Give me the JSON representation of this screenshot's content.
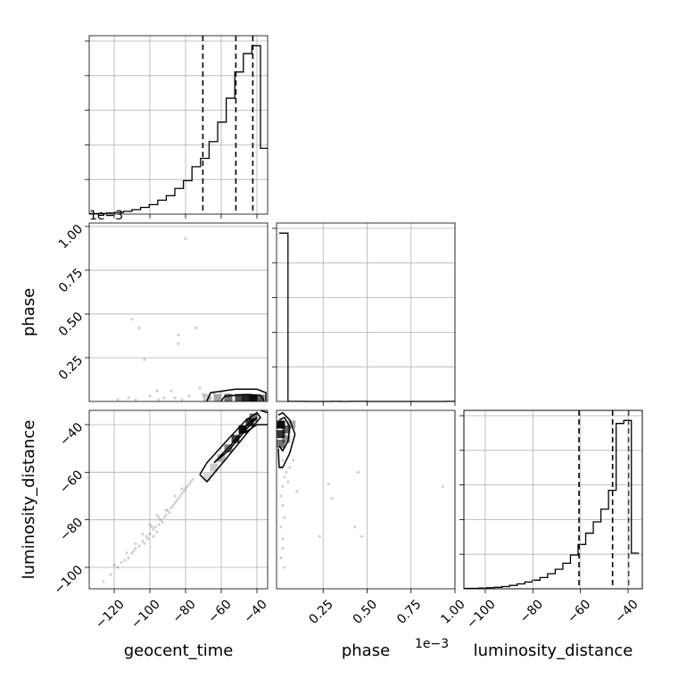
{
  "chart_data": {
    "type": "corner",
    "parameters": [
      "geocent_time",
      "phase",
      "luminosity_distance"
    ],
    "grid": true,
    "phase_scale_label": "1e−3",
    "diagonal": [
      {
        "parameter": "geocent_time",
        "bin_edges": [
          -134,
          -129.2,
          -124.4,
          -119.6,
          -114.8,
          -110,
          -105.2,
          -100.4,
          -95.6,
          -90.8,
          -86,
          -81.2,
          -76.4,
          -71.6,
          -66.8,
          -62,
          -57.2,
          -52.4,
          -47.6,
          -42.8,
          -38,
          -33.2
        ],
        "counts": [
          1,
          1,
          2,
          3,
          5,
          8,
          12,
          17,
          25,
          33,
          46,
          60,
          85,
          100,
          130,
          165,
          208,
          255,
          288,
          302,
          118
        ],
        "quantiles": [
          -70.3,
          -51.8,
          -42.3
        ],
        "xlim": [
          -134,
          -34
        ]
      },
      {
        "parameter": "phase",
        "bin_edges": [
          0,
          0.05,
          0.1,
          0.15,
          0.2,
          0.25,
          0.3,
          0.35,
          0.4,
          0.45,
          0.5,
          0.55,
          0.6,
          0.65,
          0.7,
          0.75,
          0.8,
          0.85,
          0.9,
          0.95,
          1.0
        ],
        "counts": [
          1250,
          1,
          1,
          0,
          0,
          0,
          1,
          0,
          1,
          1,
          0,
          0,
          0,
          0,
          0,
          0,
          0,
          0,
          0,
          1
        ],
        "xlim": [
          -0.015,
          1.0
        ]
      },
      {
        "parameter": "luminosity_distance",
        "bin_edges": [
          -109,
          -105.8,
          -102.6,
          -99.4,
          -96.2,
          -93,
          -89.8,
          -86.6,
          -83.4,
          -80.2,
          -77,
          -73.8,
          -70.6,
          -67.4,
          -64.2,
          -61,
          -57.8,
          -54.6,
          -51.4,
          -48.2,
          -45,
          -41.8,
          -38.6,
          -35.4
        ],
        "counts": [
          1,
          1,
          2,
          3,
          4,
          6,
          9,
          13,
          18,
          23,
          30,
          40,
          52,
          68,
          90,
          118,
          148,
          178,
          212,
          262,
          440,
          448,
          95
        ],
        "quantiles": [
          -60.6,
          -46.5,
          -39.8
        ],
        "xlim": [
          -109,
          -34
        ]
      }
    ],
    "panels": [
      {
        "x": "geocent_time",
        "y": "phase",
        "xlim": [
          -134,
          -34
        ],
        "ylim": [
          0,
          1.02
        ],
        "yticks": [
          0.25,
          0.5,
          0.75,
          1.0
        ],
        "ytick_labels": [
          "0.25",
          "0.50",
          "0.75",
          "1.00"
        ],
        "ylabel": "phase",
        "points": [
          [
            -80,
            0.93
          ],
          [
            -110,
            0.47
          ],
          [
            -106,
            0.42
          ],
          [
            -103,
            0.24
          ],
          [
            -84,
            0.38
          ],
          [
            -74,
            0.42
          ],
          [
            -84,
            0.33
          ],
          [
            -96,
            0.06
          ],
          [
            -88,
            0.06
          ],
          [
            -72,
            0.08
          ],
          [
            -64,
            0.05
          ],
          [
            -112,
            0.02
          ],
          [
            -118,
            0.01
          ],
          [
            -100,
            0.03
          ],
          [
            -92,
            0.02
          ],
          [
            -86,
            0.02
          ],
          [
            -78,
            0.03
          ],
          [
            -70,
            0.04
          ],
          [
            -66,
            0.02
          ],
          [
            -60,
            0.05
          ],
          [
            -56,
            0.04
          ],
          [
            -52,
            0.03
          ],
          [
            -48,
            0.02
          ],
          [
            -44,
            0.04
          ],
          [
            -42,
            0.02
          ],
          [
            -40,
            0.03
          ],
          [
            -38,
            0.01
          ],
          [
            -108,
            0.01
          ],
          [
            -95,
            0.01
          ],
          [
            -82,
            0.01
          ]
        ],
        "density_cells": [
          [
            -62,
            0.02,
            0.35
          ],
          [
            -56,
            0.02,
            0.55
          ],
          [
            -50,
            0.02,
            0.7
          ],
          [
            -46,
            0.015,
            0.85
          ],
          [
            -42,
            0.015,
            0.95
          ],
          [
            -38,
            0.015,
            0.6
          ],
          [
            -68,
            0.02,
            0.2
          ]
        ],
        "contours": [
          [
            [
              -68,
              0.003
            ],
            [
              -66,
              0.05
            ],
            [
              -52,
              0.07
            ],
            [
              -40,
              0.07
            ],
            [
              -35,
              0.05
            ],
            [
              -35,
              0.003
            ]
          ],
          [
            [
              -60,
              0.003
            ],
            [
              -58,
              0.03
            ],
            [
              -46,
              0.04
            ],
            [
              -38,
              0.035
            ],
            [
              -36,
              0.003
            ]
          ]
        ]
      },
      {
        "x": "geocent_time",
        "y": "luminosity_distance",
        "xlim": [
          -134,
          -34
        ],
        "ylim": [
          -109,
          -34
        ],
        "xticks": [
          -120,
          -100,
          -80,
          -60,
          -40
        ],
        "xtick_labels": [
          "−120",
          "−100",
          "−80",
          "−60",
          "−40"
        ],
        "yticks": [
          -100,
          -80,
          -60,
          -40
        ],
        "ytick_labels": [
          "−100",
          "−80",
          "−60",
          "−40"
        ],
        "xlabel": "geocent_time",
        "ylabel": "luminosity_distance",
        "points": [
          [
            -126,
            -106
          ],
          [
            -122,
            -103
          ],
          [
            -118,
            -100
          ],
          [
            -116,
            -98
          ],
          [
            -112,
            -96
          ],
          [
            -110,
            -94
          ],
          [
            -108,
            -92
          ],
          [
            -106,
            -91
          ],
          [
            -104,
            -89
          ],
          [
            -102,
            -87
          ],
          [
            -100,
            -86
          ],
          [
            -98,
            -84
          ],
          [
            -97,
            -83
          ],
          [
            -95,
            -82
          ],
          [
            -94,
            -80
          ],
          [
            -92,
            -79
          ],
          [
            -91,
            -78
          ],
          [
            -90,
            -76
          ],
          [
            -88,
            -75
          ],
          [
            -87,
            -74
          ],
          [
            -86,
            -73
          ],
          [
            -84,
            -71
          ],
          [
            -83,
            -70
          ],
          [
            -82,
            -69
          ],
          [
            -81,
            -68
          ],
          [
            -80,
            -67
          ],
          [
            -79,
            -66
          ],
          [
            -78,
            -65
          ],
          [
            -77,
            -64
          ],
          [
            -76,
            -63
          ],
          [
            -101,
            -88
          ],
          [
            -96,
            -85
          ],
          [
            -93,
            -81
          ],
          [
            -89,
            -77
          ],
          [
            -85,
            -72
          ],
          [
            -99,
            -83
          ],
          [
            -95,
            -79
          ],
          [
            -91,
            -76
          ],
          [
            -86,
            -70
          ],
          [
            -82,
            -67
          ],
          [
            -113,
            -94
          ],
          [
            -108,
            -90
          ],
          [
            -104,
            -86
          ],
          [
            -100,
            -82
          ],
          [
            -96,
            -78
          ],
          [
            -120,
            -99
          ],
          [
            -114,
            -97
          ],
          [
            -109,
            -93
          ],
          [
            -103,
            -90
          ],
          [
            -98,
            -87
          ]
        ],
        "density_cells": [
          [
            -48,
            -42,
            0.95
          ],
          [
            -44,
            -39,
            0.8
          ],
          [
            -52,
            -46,
            0.75
          ],
          [
            -56,
            -50,
            0.5
          ],
          [
            -42,
            -37,
            0.55
          ],
          [
            -60,
            -54,
            0.3
          ],
          [
            -64,
            -58,
            0.2
          ],
          [
            -68,
            -62,
            0.15
          ]
        ],
        "contours": [
          [
            [
              -72,
              -61
            ],
            [
              -68,
              -56
            ],
            [
              -56,
              -46
            ],
            [
              -46,
              -38
            ],
            [
              -40,
              -35
            ],
            [
              -38,
              -37
            ],
            [
              -46,
              -44
            ],
            [
              -58,
              -55
            ],
            [
              -68,
              -64
            ],
            [
              -72,
              -61
            ]
          ],
          [
            [
              -64,
              -56
            ],
            [
              -54,
              -48
            ],
            [
              -44,
              -39
            ],
            [
              -40,
              -37
            ],
            [
              -46,
              -42
            ],
            [
              -56,
              -51
            ],
            [
              -64,
              -56
            ]
          ],
          [
            [
              -34,
              -40
            ],
            [
              -40,
              -40
            ],
            [
              -46,
              -43
            ]
          ],
          [
            [
              -34,
              -35
            ],
            [
              -38,
              -34
            ]
          ]
        ]
      },
      {
        "x": "phase",
        "y": "luminosity_distance",
        "xlim": [
          -0.015,
          1.0
        ],
        "ylim": [
          -109,
          -34
        ],
        "xticks": [
          0.25,
          0.5,
          0.75,
          1.0
        ],
        "xtick_labels": [
          "0.25",
          "0.50",
          "0.75",
          "1.00"
        ],
        "xlabel": "phase",
        "points": [
          [
            0.02,
            -50
          ],
          [
            0.02,
            -55
          ],
          [
            0.01,
            -58
          ],
          [
            0.03,
            -62
          ],
          [
            0.02,
            -66
          ],
          [
            0.01,
            -70
          ],
          [
            0.02,
            -74
          ],
          [
            0.03,
            -79
          ],
          [
            0.01,
            -83
          ],
          [
            0.02,
            -88
          ],
          [
            0.04,
            -60
          ],
          [
            0.05,
            -64
          ],
          [
            0.06,
            -58
          ],
          [
            0.02,
            -92
          ],
          [
            0.01,
            -96
          ],
          [
            0.03,
            -100
          ],
          [
            0.28,
            -65
          ],
          [
            0.3,
            -71
          ],
          [
            0.45,
            -60
          ],
          [
            0.43,
            -83
          ],
          [
            0.47,
            -87
          ],
          [
            0.93,
            -66
          ],
          [
            0.23,
            -87
          ],
          [
            0.08,
            -55
          ],
          [
            0.1,
            -68
          ],
          [
            0.02,
            -45
          ],
          [
            0.03,
            -42
          ],
          [
            0.01,
            -38
          ]
        ],
        "density_cells": [
          [
            0.01,
            -40,
            0.95
          ],
          [
            0.01,
            -44,
            0.8
          ],
          [
            0.01,
            -48,
            0.55
          ],
          [
            0.04,
            -42,
            0.6
          ],
          [
            0.04,
            -46,
            0.4
          ],
          [
            0.07,
            -40,
            0.35
          ]
        ],
        "contours": [
          [
            [
              -0.005,
              -36
            ],
            [
              0.02,
              -35
            ],
            [
              0.06,
              -38
            ],
            [
              0.09,
              -44
            ],
            [
              0.06,
              -52
            ],
            [
              0.02,
              -58
            ],
            [
              0.0,
              -58
            ],
            [
              -0.005,
              -50
            ]
          ],
          [
            [
              0.0,
              -38
            ],
            [
              0.03,
              -37
            ],
            [
              0.06,
              -41
            ],
            [
              0.05,
              -47
            ],
            [
              0.02,
              -51
            ],
            [
              0.0,
              -49
            ]
          ]
        ]
      }
    ],
    "diagonal_xticks": {
      "geocent_time": {
        "ticks": [
          -120,
          -100,
          -80,
          -60,
          -40
        ]
      },
      "luminosity_distance": {
        "ticks": [
          -100,
          -80,
          -60,
          -40
        ],
        "labels": [
          "−100",
          "−80",
          "−60",
          "−40"
        ]
      }
    }
  }
}
